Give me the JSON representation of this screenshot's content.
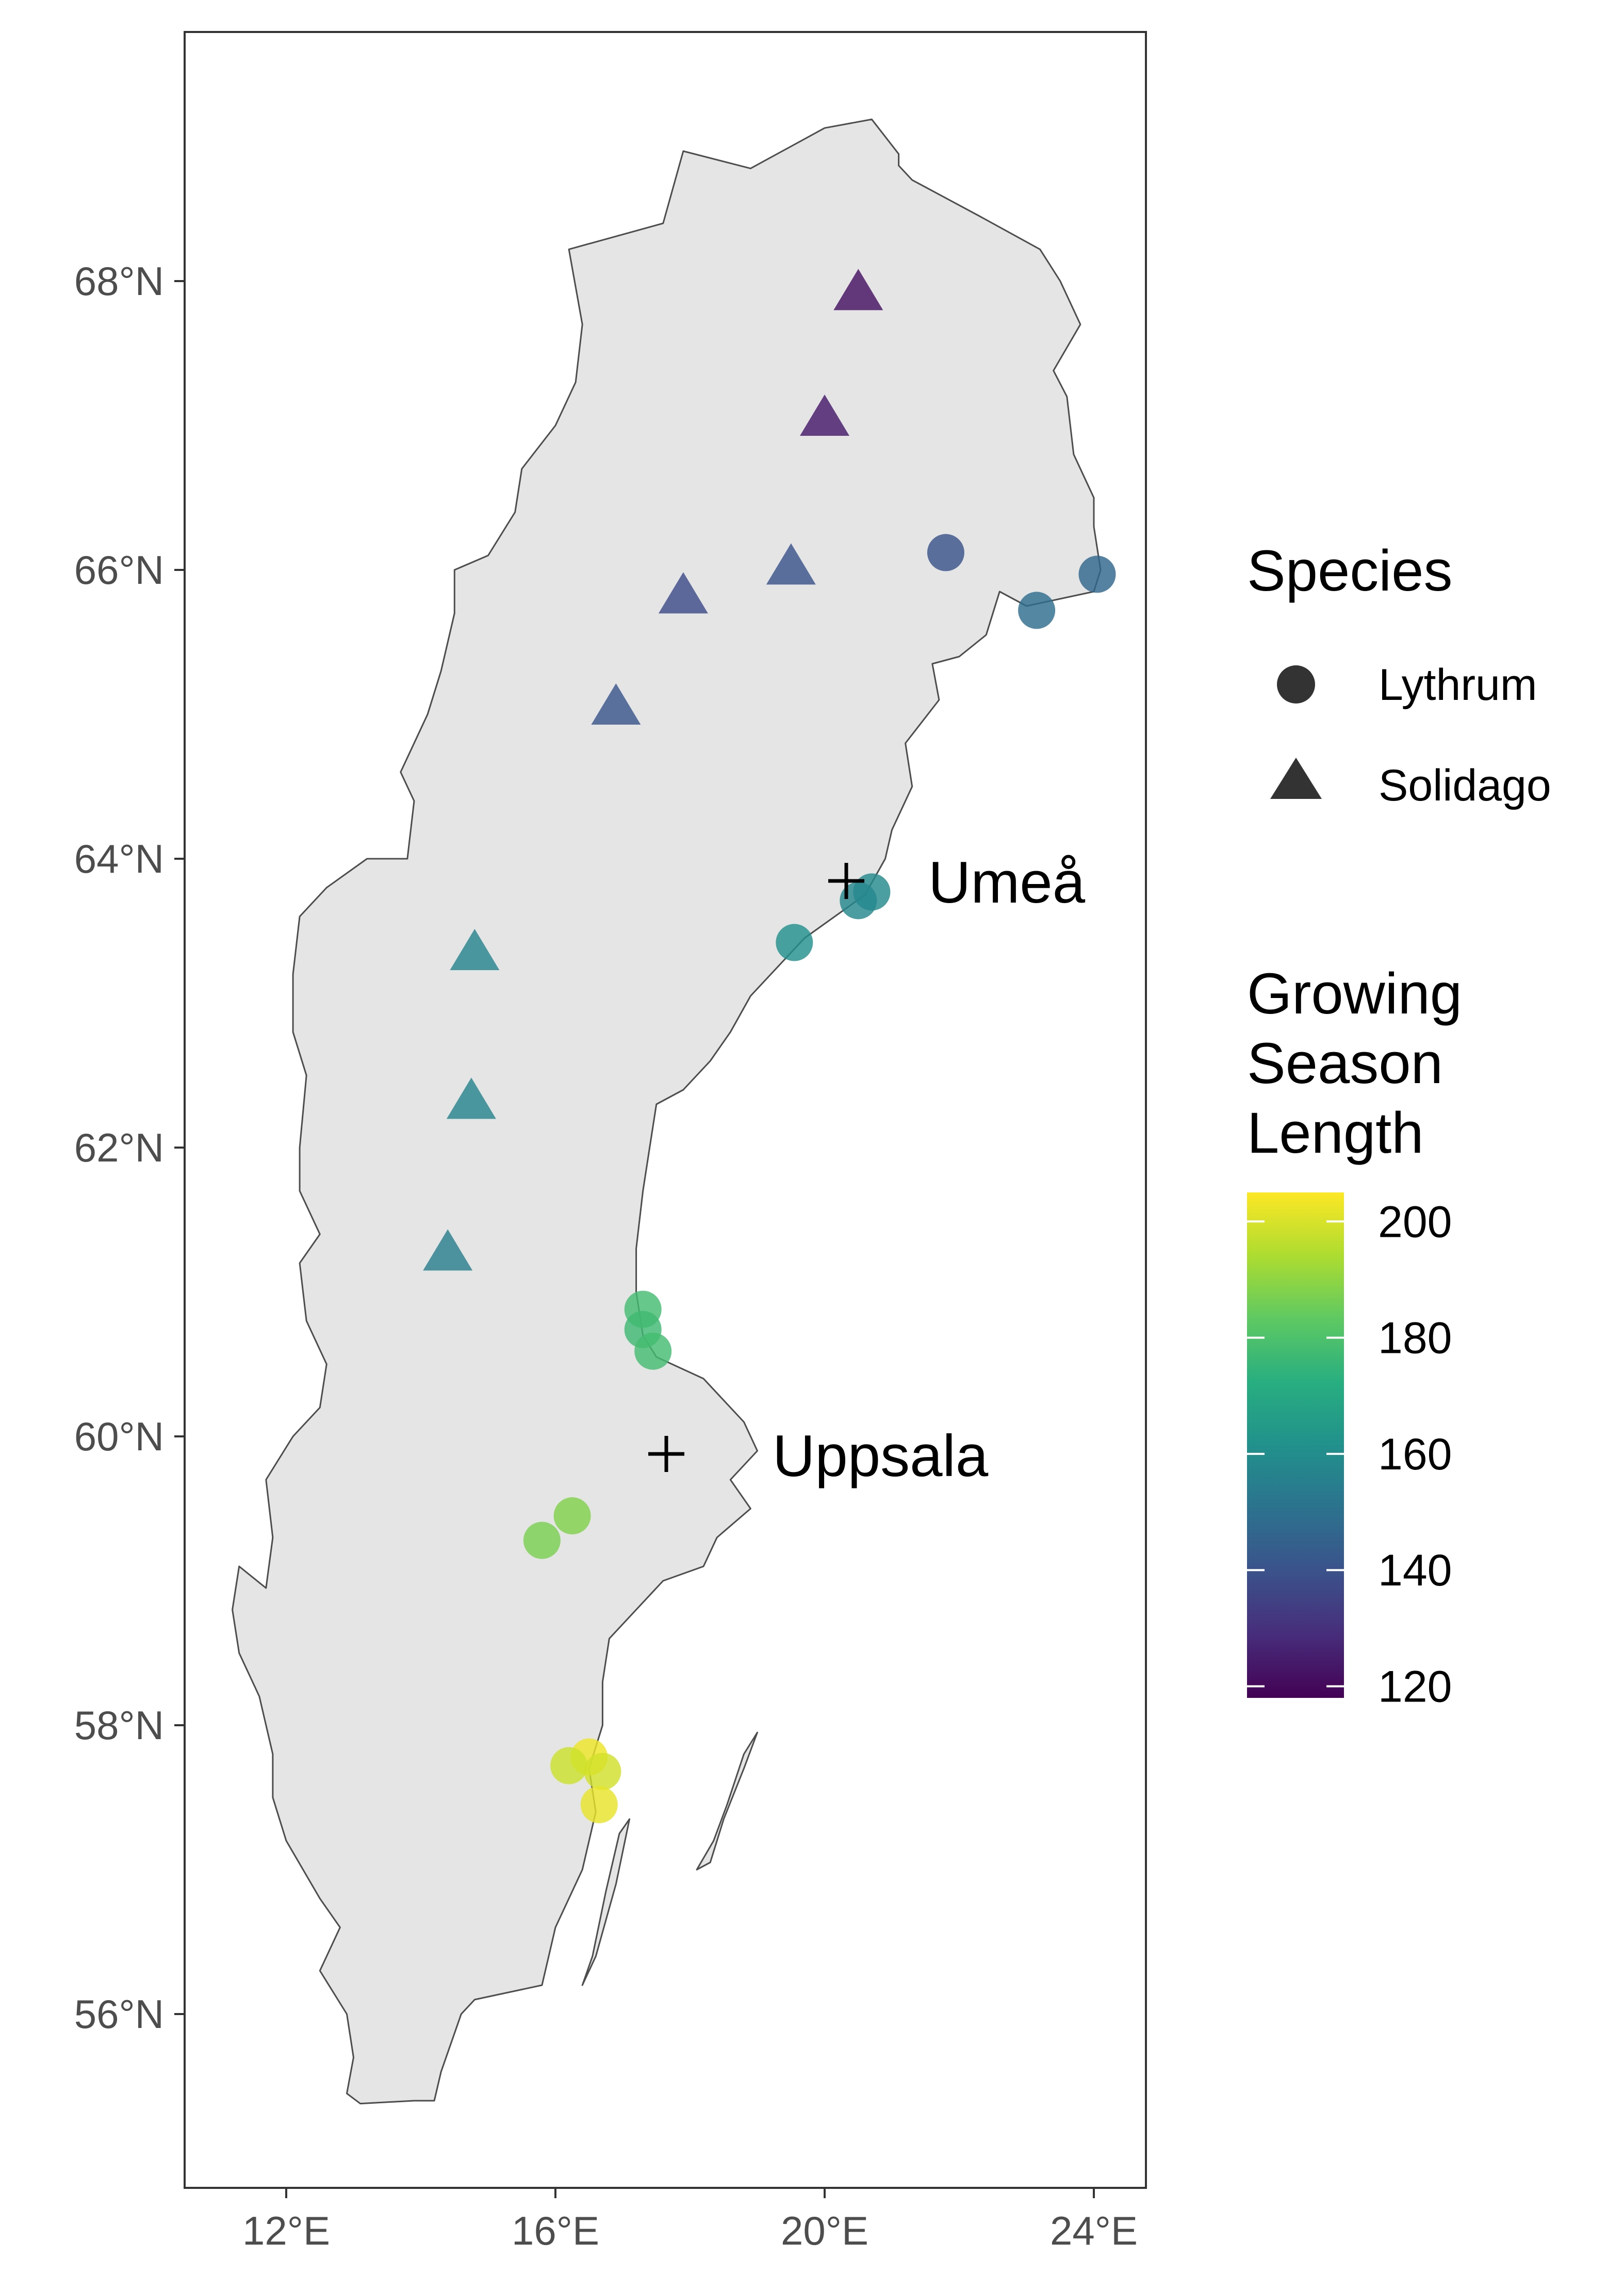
{
  "map": {
    "x_axis_ticks": [
      "12°E",
      "16°E",
      "20°E",
      "24°E"
    ],
    "y_axis_ticks": [
      "56°N",
      "58°N",
      "60°N",
      "62°N",
      "64°N",
      "66°N",
      "68°N"
    ],
    "land_fill": "#e5e5e5",
    "outline_color": "#4d4d4d",
    "cities": [
      {
        "name": "Umeå",
        "lon": 20.26,
        "lat": 63.83
      },
      {
        "name": "Uppsala",
        "lon": 17.64,
        "lat": 59.86
      }
    ]
  },
  "legend": {
    "species_title": "Species",
    "species": [
      {
        "label": "Lythrum",
        "shape": "circle"
      },
      {
        "label": "Solidago",
        "shape": "triangle"
      }
    ],
    "colorbar_title": [
      "Growing",
      "Season",
      "Length"
    ],
    "colorbar_ticks": [
      120,
      140,
      160,
      180,
      200
    ],
    "colorbar_range": [
      118,
      205
    ],
    "palette": "viridis"
  },
  "chart_data": {
    "type": "scatter",
    "x_axis": "longitude",
    "y_axis": "latitude",
    "xlim": [
      10.4,
      24.9
    ],
    "ylim": [
      54.8,
      69.4
    ],
    "series": [
      {
        "name": "Lythrum",
        "shape": "circle",
        "points": [
          {
            "lon": 21.8,
            "lat": 66.12,
            "gsl": 140
          },
          {
            "lon": 24.05,
            "lat": 65.97,
            "gsl": 147
          },
          {
            "lon": 23.15,
            "lat": 65.72,
            "gsl": 149
          },
          {
            "lon": 20.7,
            "lat": 63.77,
            "gsl": 159
          },
          {
            "lon": 20.5,
            "lat": 63.71,
            "gsl": 158
          },
          {
            "lon": 19.55,
            "lat": 63.42,
            "gsl": 161
          },
          {
            "lon": 17.3,
            "lat": 60.88,
            "gsl": 178
          },
          {
            "lon": 17.3,
            "lat": 60.74,
            "gsl": 177
          },
          {
            "lon": 17.45,
            "lat": 60.59,
            "gsl": 178
          },
          {
            "lon": 16.25,
            "lat": 59.45,
            "gsl": 188
          },
          {
            "lon": 15.8,
            "lat": 59.28,
            "gsl": 187
          },
          {
            "lon": 16.5,
            "lat": 57.78,
            "gsl": 203
          },
          {
            "lon": 16.2,
            "lat": 57.72,
            "gsl": 198
          },
          {
            "lon": 16.7,
            "lat": 57.68,
            "gsl": 199
          },
          {
            "lon": 16.65,
            "lat": 57.45,
            "gsl": 202
          }
        ]
      },
      {
        "name": "Solidago",
        "shape": "triangle",
        "points": [
          {
            "lon": 20.5,
            "lat": 67.92,
            "gsl": 122
          },
          {
            "lon": 20.0,
            "lat": 67.05,
            "gsl": 124
          },
          {
            "lon": 17.9,
            "lat": 65.82,
            "gsl": 138
          },
          {
            "lon": 19.5,
            "lat": 66.02,
            "gsl": 140
          },
          {
            "lon": 16.9,
            "lat": 65.05,
            "gsl": 141
          },
          {
            "lon": 14.8,
            "lat": 63.35,
            "gsl": 157
          },
          {
            "lon": 14.75,
            "lat": 62.32,
            "gsl": 157
          },
          {
            "lon": 14.4,
            "lat": 61.27,
            "gsl": 155
          }
        ]
      }
    ]
  }
}
